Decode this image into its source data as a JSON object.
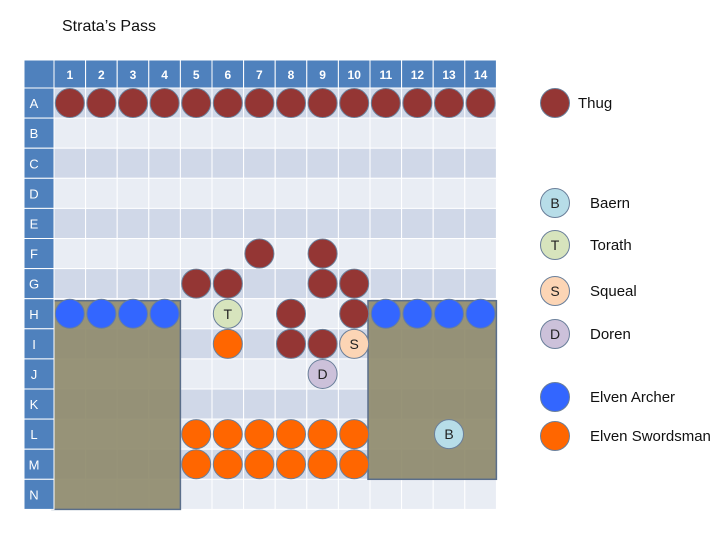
{
  "title": "Strata’s Pass",
  "columns": [
    "1",
    "2",
    "3",
    "4",
    "5",
    "6",
    "7",
    "8",
    "9",
    "10",
    "11",
    "12",
    "13",
    "14"
  ],
  "rows": [
    "A",
    "B",
    "C",
    "D",
    "E",
    "F",
    "G",
    "H",
    "I",
    "J",
    "K",
    "L",
    "M",
    "N"
  ],
  "colors": {
    "header_fill": "#4f81bd",
    "header_text": "#ffffff",
    "cell_dark": "#d0d8e8",
    "cell_light": "#e9edf4",
    "terrain": "#8f8b6d",
    "terrain_border": "#5a6e8a",
    "thug": "#943634",
    "archer": "#3366ff",
    "swordsman": "#ff6600",
    "baern": "#b7dde8",
    "torath": "#d7e4bd",
    "squeal": "#fcd5b5",
    "doren": "#ccc1da"
  },
  "terrain_blocks": [
    {
      "name": "west-cliff",
      "rows": "H-N",
      "cols": "1-4"
    },
    {
      "name": "east-cliff",
      "rows": "H-M",
      "cols": "11-14"
    }
  ],
  "tokens": [
    {
      "type": "thug",
      "row": "A",
      "col": 1
    },
    {
      "type": "thug",
      "row": "A",
      "col": 2
    },
    {
      "type": "thug",
      "row": "A",
      "col": 3
    },
    {
      "type": "thug",
      "row": "A",
      "col": 4
    },
    {
      "type": "thug",
      "row": "A",
      "col": 5
    },
    {
      "type": "thug",
      "row": "A",
      "col": 6
    },
    {
      "type": "thug",
      "row": "A",
      "col": 7
    },
    {
      "type": "thug",
      "row": "A",
      "col": 8
    },
    {
      "type": "thug",
      "row": "A",
      "col": 9
    },
    {
      "type": "thug",
      "row": "A",
      "col": 10
    },
    {
      "type": "thug",
      "row": "A",
      "col": 11
    },
    {
      "type": "thug",
      "row": "A",
      "col": 12
    },
    {
      "type": "thug",
      "row": "A",
      "col": 13
    },
    {
      "type": "thug",
      "row": "A",
      "col": 14
    },
    {
      "type": "thug",
      "row": "F",
      "col": 7
    },
    {
      "type": "thug",
      "row": "F",
      "col": 9
    },
    {
      "type": "thug",
      "row": "G",
      "col": 5
    },
    {
      "type": "thug",
      "row": "G",
      "col": 6
    },
    {
      "type": "thug",
      "row": "G",
      "col": 9
    },
    {
      "type": "thug",
      "row": "G",
      "col": 10
    },
    {
      "type": "thug",
      "row": "H",
      "col": 8
    },
    {
      "type": "thug",
      "row": "H",
      "col": 10
    },
    {
      "type": "thug",
      "row": "I",
      "col": 8
    },
    {
      "type": "thug",
      "row": "I",
      "col": 9
    },
    {
      "type": "archer",
      "row": "H",
      "col": 1
    },
    {
      "type": "archer",
      "row": "H",
      "col": 2
    },
    {
      "type": "archer",
      "row": "H",
      "col": 3
    },
    {
      "type": "archer",
      "row": "H",
      "col": 4
    },
    {
      "type": "archer",
      "row": "H",
      "col": 11
    },
    {
      "type": "archer",
      "row": "H",
      "col": 12
    },
    {
      "type": "archer",
      "row": "H",
      "col": 13
    },
    {
      "type": "archer",
      "row": "H",
      "col": 14
    },
    {
      "type": "swordsman",
      "row": "I",
      "col": 6
    },
    {
      "type": "swordsman",
      "row": "L",
      "col": 5
    },
    {
      "type": "swordsman",
      "row": "L",
      "col": 6
    },
    {
      "type": "swordsman",
      "row": "L",
      "col": 7
    },
    {
      "type": "swordsman",
      "row": "L",
      "col": 8
    },
    {
      "type": "swordsman",
      "row": "L",
      "col": 9
    },
    {
      "type": "swordsman",
      "row": "L",
      "col": 10
    },
    {
      "type": "swordsman",
      "row": "M",
      "col": 5
    },
    {
      "type": "swordsman",
      "row": "M",
      "col": 6
    },
    {
      "type": "swordsman",
      "row": "M",
      "col": 7
    },
    {
      "type": "swordsman",
      "row": "M",
      "col": 8
    },
    {
      "type": "swordsman",
      "row": "M",
      "col": 9
    },
    {
      "type": "swordsman",
      "row": "M",
      "col": 10
    },
    {
      "type": "torath",
      "row": "H",
      "col": 6,
      "letter": "T"
    },
    {
      "type": "squeal",
      "row": "I",
      "col": 10,
      "letter": "S"
    },
    {
      "type": "doren",
      "row": "J",
      "col": 9,
      "letter": "D"
    },
    {
      "type": "baern",
      "row": "L",
      "col": 13,
      "letter": "B"
    }
  ],
  "legend": [
    {
      "key": "thug",
      "label": "Thug",
      "letter": ""
    },
    {
      "key": "baern",
      "label": "Baern",
      "letter": "B"
    },
    {
      "key": "torath",
      "label": "Torath",
      "letter": "T"
    },
    {
      "key": "squeal",
      "label": "Squeal",
      "letter": "S"
    },
    {
      "key": "doren",
      "label": "Doren",
      "letter": "D"
    },
    {
      "key": "archer",
      "label": "Elven Archer",
      "letter": ""
    },
    {
      "key": "swordsman",
      "label": "Elven Swordsman",
      "letter": ""
    }
  ]
}
